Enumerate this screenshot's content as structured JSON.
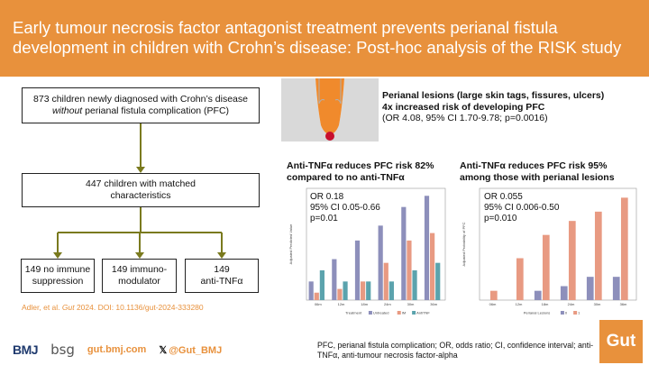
{
  "header": {
    "title": "Early tumour necrosis factor antagonist treatment prevents perianal fistula development in children with Crohn’s disease: Post-hoc analysis of the RISK study"
  },
  "flow": {
    "box1_line1": "873 children newly diagnosed with Crohn’s disease",
    "box1_line2_em": "without",
    "box1_line2_rest": " perianal fistula complication (PFC)",
    "box2_line1": "447 children with matched",
    "box2_line2": "characteristics",
    "box3_line1": "149 no immune",
    "box3_line2": "suppression",
    "box4_line1": "149 immuno-",
    "box4_line2": "modulator",
    "box5_line1": "149",
    "box5_line2": "anti-TNFα"
  },
  "lesion": {
    "line1": "Perianal lesions (large skin tags, fissures, ulcers)",
    "line2": "4x increased risk of developing PFC",
    "line3": "(OR 4.08, 95% CI 1.70-9.78; p=0.0016)"
  },
  "chart1": {
    "title_line1": "Anti-TNFα reduces PFC risk 82%",
    "title_line2": "compared to no anti-TNFα",
    "stat1": "OR 0.18",
    "stat2": "95% CI 0.05-0.66",
    "stat3": "p=0.01"
  },
  "chart2": {
    "title_line1": "Anti-TNFα reduces PFC risk 95%",
    "title_line2": "among those with perianal lesions",
    "stat1": "OR 0.055",
    "stat2": "95% CI 0.006-0.50",
    "stat3": "p=0.010"
  },
  "chart_data": [
    {
      "type": "bar",
      "ylabel": "Adjusted Predicted Value",
      "categories": [
        "06m",
        "12m",
        "18m",
        "24m",
        "30m",
        "36m"
      ],
      "legend_title": "Treatment",
      "series": [
        {
          "name": "Untreated",
          "color": "#8d8fbb",
          "values": [
            0.05,
            0.11,
            0.16,
            0.2,
            0.25,
            0.28
          ]
        },
        {
          "name": "IM",
          "color": "#e89a82",
          "values": [
            0.02,
            0.03,
            0.05,
            0.1,
            0.16,
            0.18
          ]
        },
        {
          "name": "AntiTNF",
          "color": "#5ba3ad",
          "values": [
            0.08,
            0.05,
            0.05,
            0.05,
            0.08,
            0.1
          ]
        }
      ]
    },
    {
      "type": "bar",
      "ylabel": "Adjusted Probability of PFC",
      "categories": [
        "06m",
        "12m",
        "18m",
        "24m",
        "30m",
        "36m"
      ],
      "legend_title": "Perianal Lesions",
      "series": [
        {
          "name": "0",
          "color": "#8d8fbb",
          "values": [
            0.0,
            0.0,
            0.02,
            0.03,
            0.05,
            0.05
          ]
        },
        {
          "name": "1",
          "color": "#e89a82",
          "values": [
            0.02,
            0.09,
            0.14,
            0.17,
            0.19,
            0.22
          ]
        }
      ]
    }
  ],
  "citation": {
    "authors": "Adler, et al. ",
    "journal": "Gut",
    "rest": " 2024. DOI: 10.1136/gut-2024-333280"
  },
  "logos": {
    "bmj": "BMJ",
    "bsg": "bsg",
    "url": "gut.bmj.com",
    "x_glyph": "𝕏",
    "handle": "@Gut_BMJ",
    "gut": "Gut"
  },
  "footnote": "PFC, perianal fistula complication; OR, odds ratio; CI, confidence interval; anti-TNFα, anti-tumour necrosis factor-alpha"
}
